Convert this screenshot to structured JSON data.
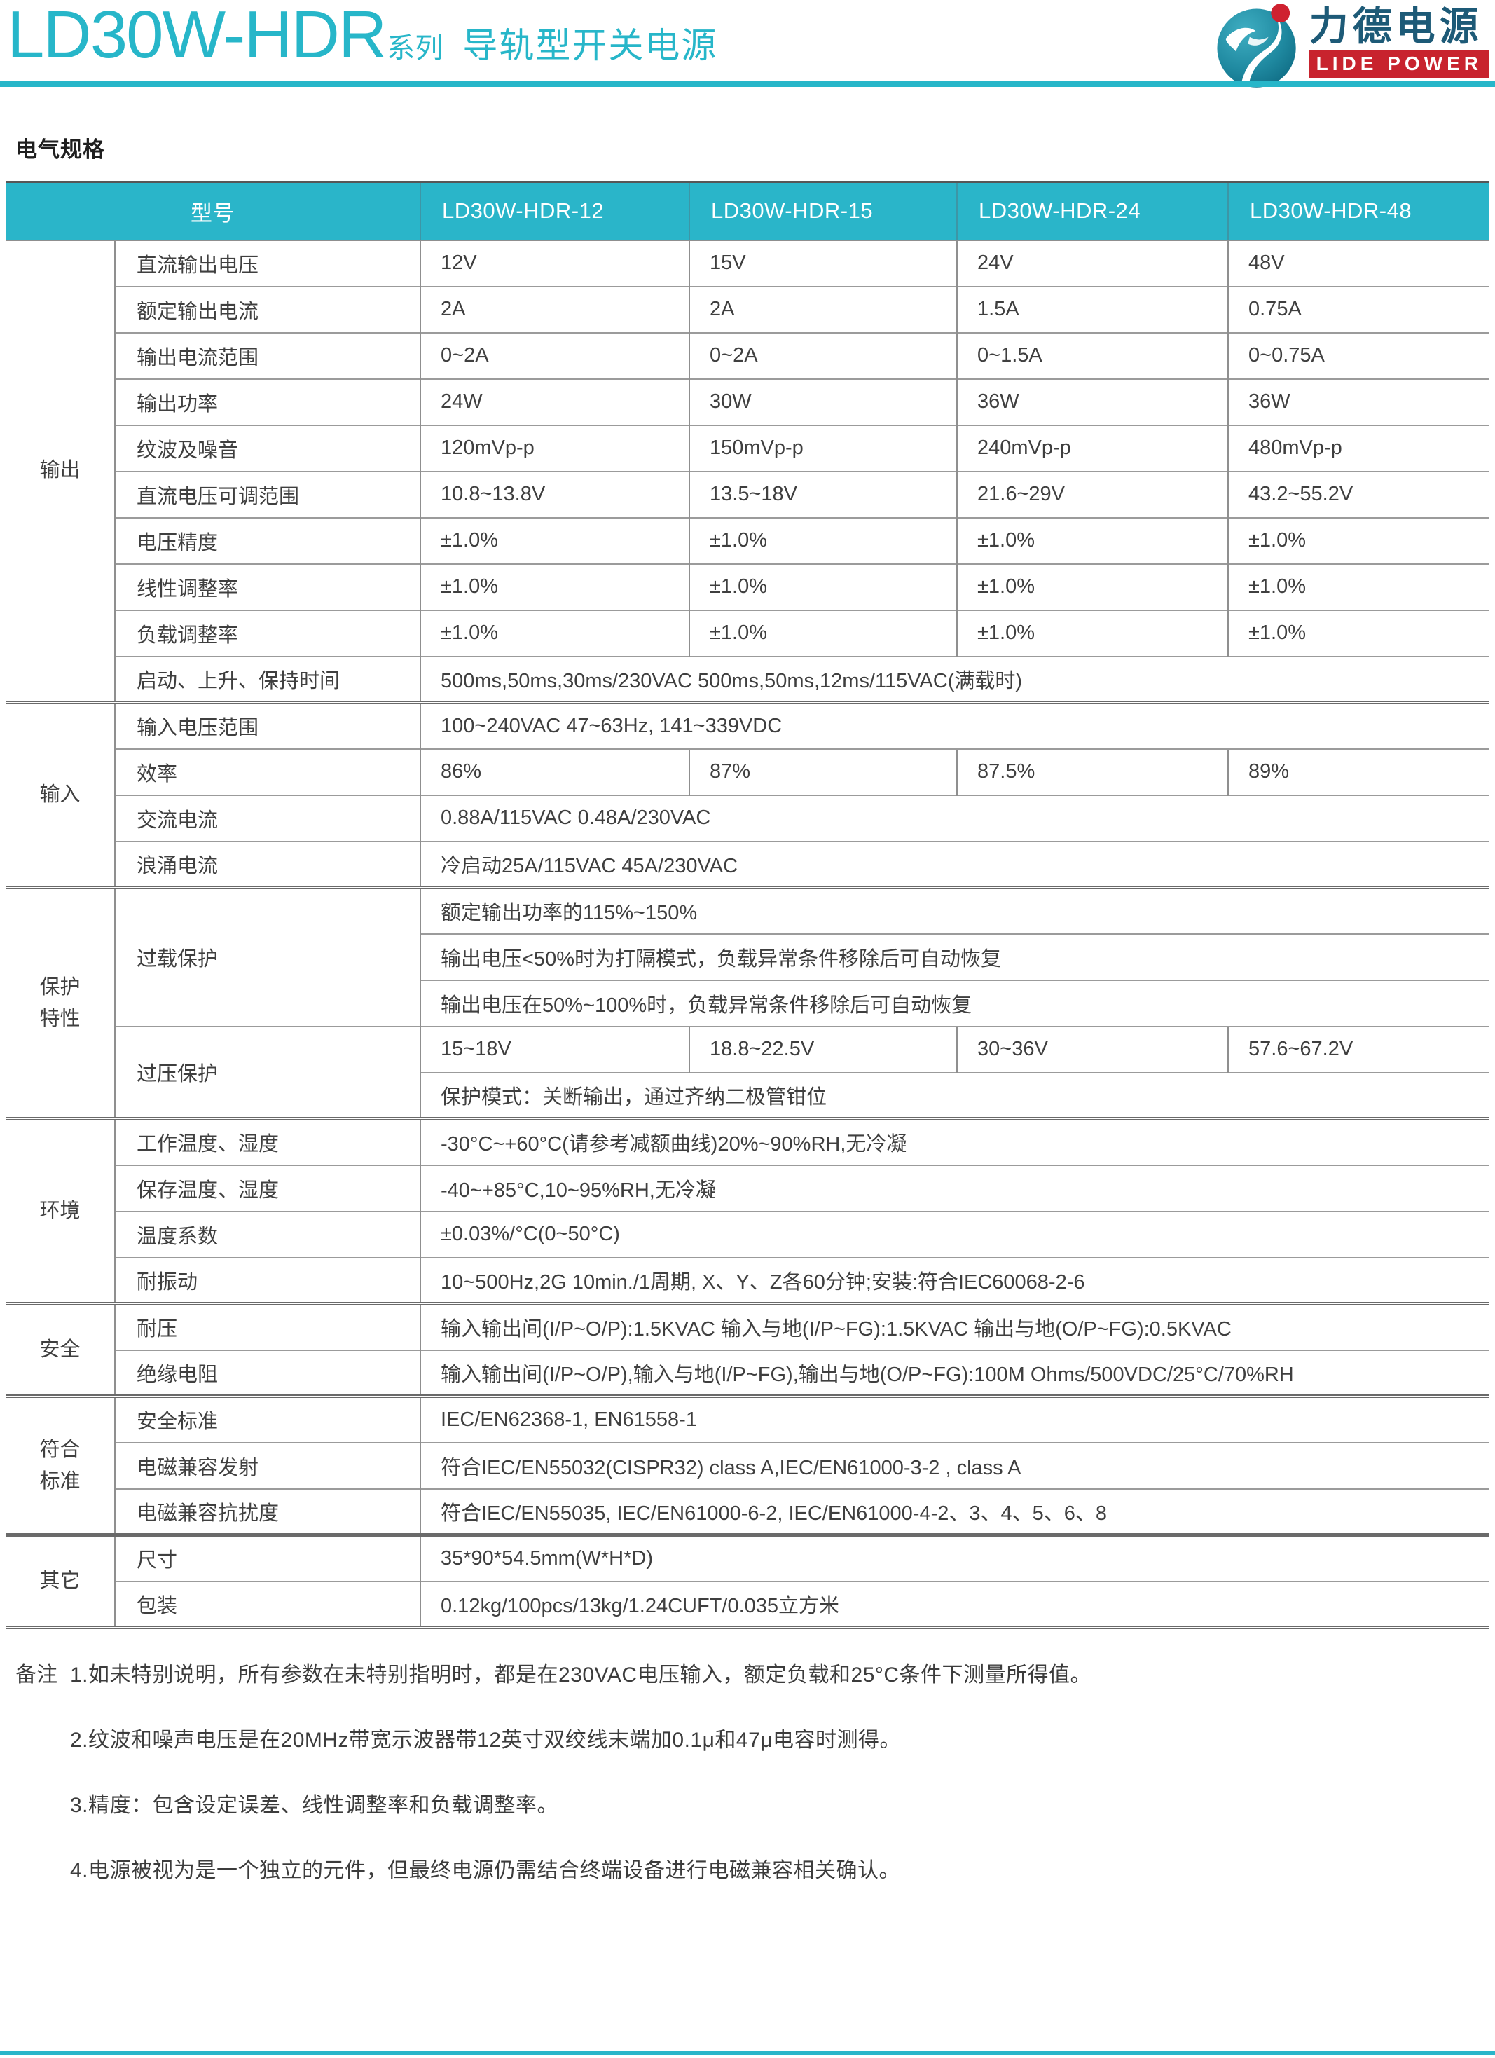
{
  "header": {
    "title_model": "LD30W-HDR",
    "title_series": "系列",
    "title_product": "导轨型开关电源"
  },
  "logo": {
    "name_cn": "力德电源",
    "name_en": "LIDE POWER"
  },
  "section_title": "电气规格",
  "table": {
    "header": [
      "型号",
      "LD30W-HDR-12",
      "LD30W-HDR-15",
      "LD30W-HDR-24",
      "LD30W-HDR-48"
    ],
    "groups": [
      {
        "name": "输出",
        "params": [
          {
            "label": "直流输出电压",
            "rows": [
              [
                "12V",
                "15V",
                "24V",
                "48V"
              ]
            ]
          },
          {
            "label": "额定输出电流",
            "rows": [
              [
                "2A",
                "2A",
                "1.5A",
                "0.75A"
              ]
            ]
          },
          {
            "label": "输出电流范围",
            "rows": [
              [
                "0~2A",
                "0~2A",
                "0~1.5A",
                "0~0.75A"
              ]
            ]
          },
          {
            "label": "输出功率",
            "rows": [
              [
                "24W",
                "30W",
                "36W",
                "36W"
              ]
            ]
          },
          {
            "label": "纹波及噪音",
            "rows": [
              [
                "120mVp-p",
                "150mVp-p",
                "240mVp-p",
                "480mVp-p"
              ]
            ]
          },
          {
            "label": "直流电压可调范围",
            "rows": [
              [
                "10.8~13.8V",
                "13.5~18V",
                "21.6~29V",
                "43.2~55.2V"
              ]
            ]
          },
          {
            "label": "电压精度",
            "rows": [
              [
                "±1.0%",
                "±1.0%",
                "±1.0%",
                "±1.0%"
              ]
            ]
          },
          {
            "label": "线性调整率",
            "rows": [
              [
                "±1.0%",
                "±1.0%",
                "±1.0%",
                "±1.0%"
              ]
            ]
          },
          {
            "label": "负载调整率",
            "rows": [
              [
                "±1.0%",
                "±1.0%",
                "±1.0%",
                "±1.0%"
              ]
            ]
          },
          {
            "label": "启动、上升、保持时间",
            "rows": [
              [
                "500ms,50ms,30ms/230VAC  500ms,50ms,12ms/115VAC(满载时)"
              ]
            ]
          }
        ]
      },
      {
        "name": "输入",
        "params": [
          {
            "label": "输入电压范围",
            "rows": [
              [
                "100~240VAC  47~63Hz, 141~339VDC"
              ]
            ]
          },
          {
            "label": "效率",
            "rows": [
              [
                "86%",
                "87%",
                "87.5%",
                "89%"
              ]
            ]
          },
          {
            "label": "交流电流",
            "rows": [
              [
                "0.88A/115VAC  0.48A/230VAC"
              ]
            ]
          },
          {
            "label": "浪涌电流",
            "rows": [
              [
                "冷启动25A/115VAC  45A/230VAC"
              ]
            ]
          }
        ]
      },
      {
        "name": "保护特性",
        "params": [
          {
            "label": "过载保护",
            "rows": [
              [
                "额定输出功率的115%~150%"
              ],
              [
                "输出电压<50%时为打隔模式，负载异常条件移除后可自动恢复"
              ],
              [
                "输出电压在50%~100%时，负载异常条件移除后可自动恢复"
              ]
            ]
          },
          {
            "label": "过压保护",
            "rows": [
              [
                "15~18V",
                "18.8~22.5V",
                "30~36V",
                "57.6~67.2V"
              ],
              [
                "保护模式：关断输出，通过齐纳二极管钳位"
              ]
            ]
          }
        ]
      },
      {
        "name": "环境",
        "params": [
          {
            "label": "工作温度、湿度",
            "rows": [
              [
                "-30°C~+60°C(请参考减额曲线)20%~90%RH,无冷凝"
              ]
            ]
          },
          {
            "label": "保存温度、湿度",
            "rows": [
              [
                "-40~+85°C,10~95%RH,无冷凝"
              ]
            ]
          },
          {
            "label": "温度系数",
            "rows": [
              [
                "±0.03%/°C(0~50°C)"
              ]
            ]
          },
          {
            "label": "耐振动",
            "rows": [
              [
                "10~500Hz,2G 10min./1周期, X、Y、Z各60分钟;安装:符合IEC60068-2-6"
              ]
            ]
          }
        ]
      },
      {
        "name": "安全",
        "params": [
          {
            "label": "耐压",
            "rows": [
              [
                "输入输出间(I/P~O/P):1.5KVAC  输入与地(I/P~FG):1.5KVAC  输出与地(O/P~FG):0.5KVAC"
              ]
            ]
          },
          {
            "label": "绝缘电阻",
            "rows": [
              [
                "输入输出间(I/P~O/P),输入与地(I/P~FG),输出与地(O/P~FG):100M Ohms/500VDC/25°C/70%RH"
              ]
            ]
          }
        ]
      },
      {
        "name": "符合标准",
        "params": [
          {
            "label": "安全标准",
            "rows": [
              [
                "IEC/EN62368-1, EN61558-1"
              ]
            ]
          },
          {
            "label": "电磁兼容发射",
            "rows": [
              [
                "符合IEC/EN55032(CISPR32)  class A,IEC/EN61000-3-2 , class A"
              ]
            ]
          },
          {
            "label": "电磁兼容抗扰度",
            "rows": [
              [
                "符合IEC/EN55035, IEC/EN61000-6-2, IEC/EN61000-4-2、3、4、5、6、8"
              ]
            ]
          }
        ]
      },
      {
        "name": "其它",
        "params": [
          {
            "label": "尺寸",
            "rows": [
              [
                "35*90*54.5mm(W*H*D)"
              ]
            ]
          },
          {
            "label": "包装",
            "rows": [
              [
                "0.12kg/100pcs/13kg/1.24CUFT/0.035立方米"
              ]
            ]
          }
        ]
      }
    ]
  },
  "notes": {
    "label": "备注",
    "items": [
      "1.如未特别说明，所有参数在未特别指明时，都是在230VAC电压输入，额定负载和25°C条件下测量所得值。",
      "2.纹波和噪声电压是在20MHz带宽示波器带12英寸双绞线末端加0.1μ和47μ电容时测得。",
      "3.精度：包含设定误差、线性调整率和负载调整率。",
      "4.电源被视为是一个独立的元件，但最终电源仍需结合终端设备进行电磁兼容相关确认。"
    ]
  },
  "colors": {
    "accent_teal": "#2ab5c9",
    "logo_red": "#c8232e",
    "logo_cn_text": "#1d5a77",
    "body_text": "#3f3f3f",
    "border_gray": "#8f8f8f",
    "group_border": "#6a6a6a"
  }
}
